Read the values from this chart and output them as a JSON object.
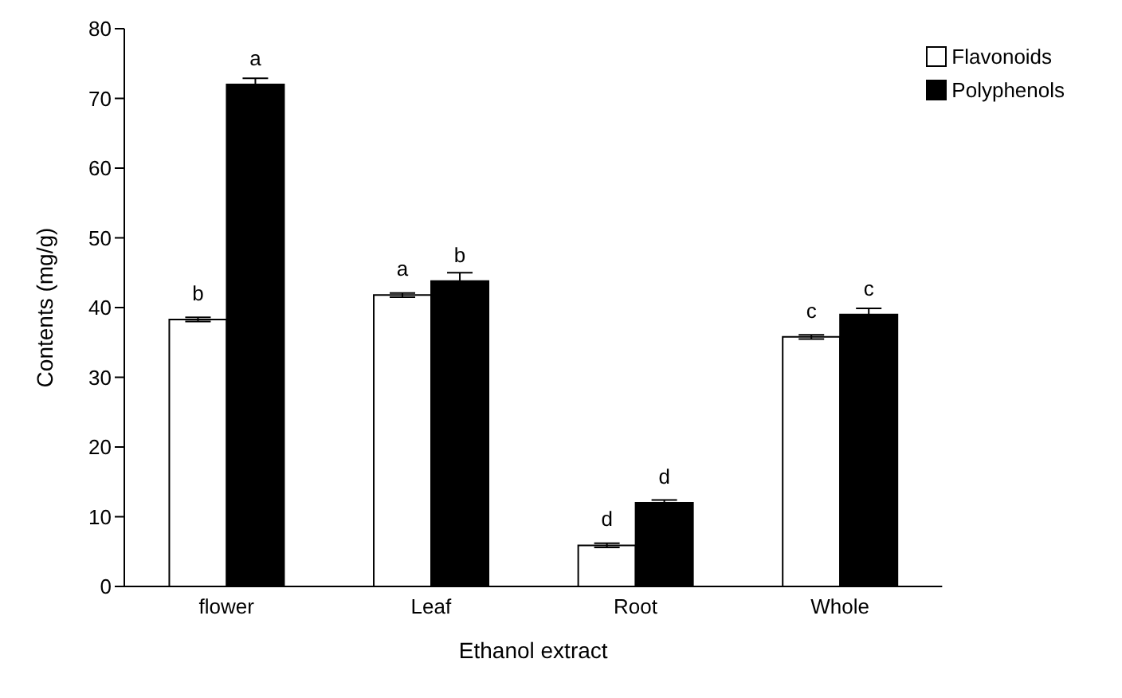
{
  "chart_data": {
    "type": "bar",
    "xlabel": "Ethanol extract",
    "ylabel": "Contents (mg/g)",
    "categories": [
      "flower",
      "Leaf",
      "Root",
      "Whole"
    ],
    "series": [
      {
        "name": "Flavonoids",
        "color": "#ffffff",
        "values": [
          38.3,
          41.8,
          5.9,
          35.8
        ],
        "errors": [
          0.3,
          0.3,
          0.3,
          0.3
        ],
        "value_labels": [
          "b",
          "a",
          "d",
          "c"
        ]
      },
      {
        "name": "Polyphenols",
        "color": "#000000",
        "values": [
          72.0,
          43.8,
          12.0,
          39.0
        ],
        "errors": [
          0.9,
          1.2,
          0.4,
          0.9
        ],
        "value_labels": [
          "a",
          "b",
          "d",
          "c"
        ]
      }
    ],
    "ylim": [
      0,
      80
    ],
    "yticks": [
      0,
      10,
      20,
      30,
      40,
      50,
      60,
      70,
      80
    ],
    "grid": false,
    "legend": "top right"
  }
}
